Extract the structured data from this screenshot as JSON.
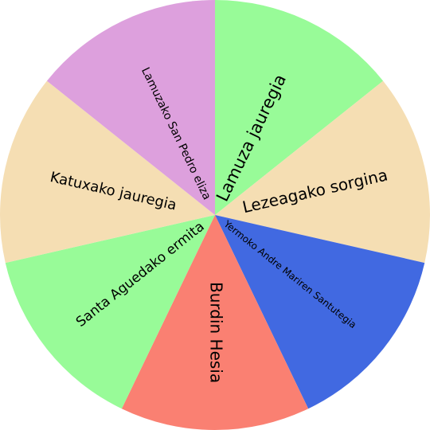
{
  "wheel": {
    "slices": [
      {
        "label": "Lamuza jauregia",
        "color": "#98fb98"
      },
      {
        "label": "Lezeagako sorgina",
        "color": "#f5deb3"
      },
      {
        "label": "Yermoko Andre Mariren Santutegia",
        "color": "#4169e1"
      },
      {
        "label": "Burdin Hesia",
        "color": "#fa8072"
      },
      {
        "label": "Santa Aguedako ermita",
        "color": "#98fb98"
      },
      {
        "label": "Katuxako jauregia",
        "color": "#f5deb3"
      },
      {
        "label": "Lamuzako San Pedro eliza",
        "color": "#dda0dd"
      }
    ]
  }
}
